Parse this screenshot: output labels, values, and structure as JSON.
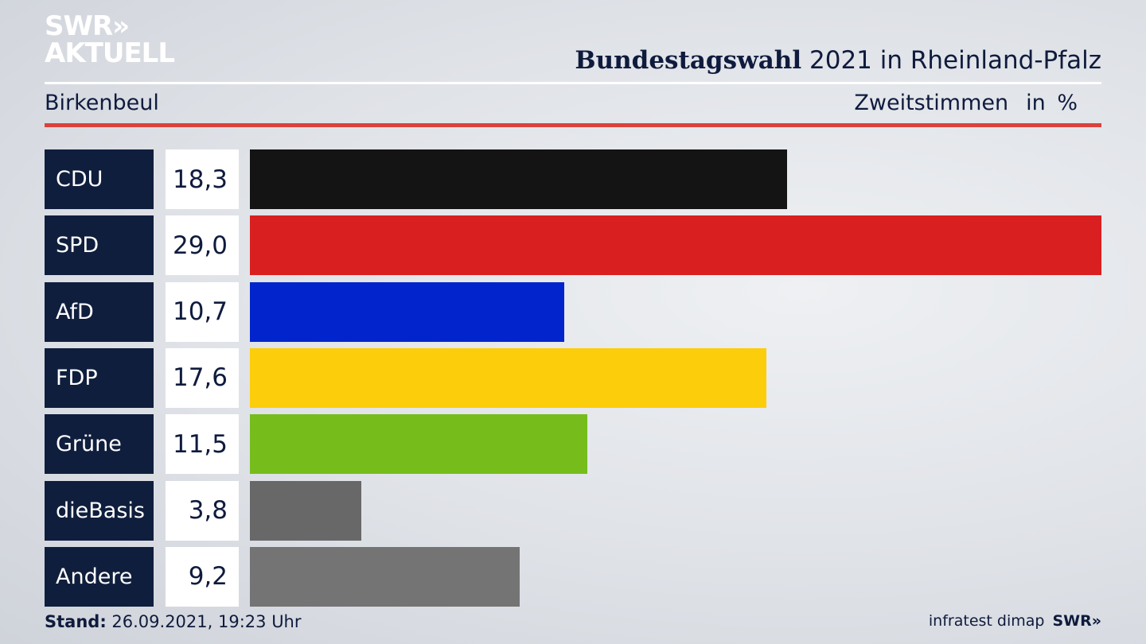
{
  "branding": {
    "logo_line1": "SWR»",
    "logo_line2": "AKTUELL",
    "footer_source": "infratest dimap",
    "footer_logo": "SWR»"
  },
  "header": {
    "title_bold": "Bundestagswahl",
    "title_rest": "2021 in Rheinland-Pfalz",
    "place": "Birkenbeul",
    "measure": "Zweitstimmen",
    "unit": "in %"
  },
  "footer": {
    "stand_label": "Stand:",
    "stand_value": "26.09.2021, 19:23 Uhr"
  },
  "chart_data": {
    "type": "bar",
    "orientation": "horizontal",
    "categories": [
      "CDU",
      "SPD",
      "AfD",
      "FDP",
      "Grüne",
      "dieBasis",
      "Andere"
    ],
    "values": [
      18.3,
      29.0,
      10.7,
      17.6,
      11.5,
      3.8,
      9.2
    ],
    "labels": [
      "18,3",
      "29,0",
      "10,7",
      "17,6",
      "11,5",
      "3,8",
      "9,2"
    ],
    "colors": [
      "#141414",
      "#d91f1f",
      "#0224cc",
      "#fccd0a",
      "#76bd1c",
      "#686868",
      "#747474"
    ],
    "title": "Bundestagswahl 2021 in Rheinland-Pfalz",
    "xlabel": "",
    "ylabel": "",
    "xlim": [
      0,
      29.0
    ],
    "grid": false
  }
}
